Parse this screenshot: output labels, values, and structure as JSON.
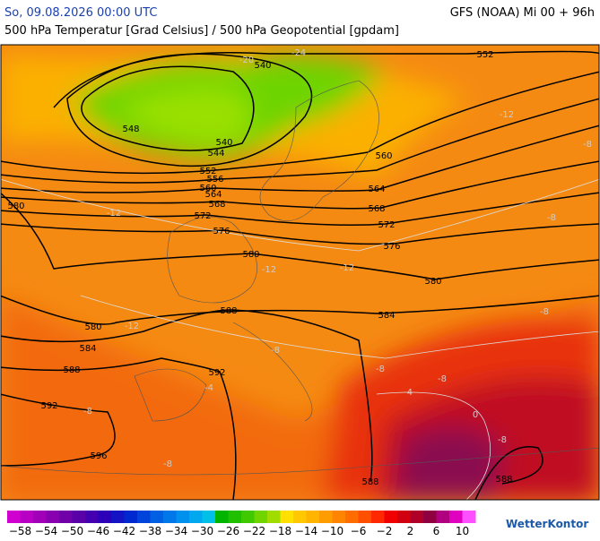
{
  "header": {
    "title": "So, 09.08.2026 00:00 UTC",
    "model": "GFS (NOAA) Mi 00 + 96h",
    "subtitle": "500 hPa Temperatur [Grad Celsius] / 500 hPa Geopotential [gpdam]"
  },
  "map": {
    "geopotential_labels": [
      "540",
      "552",
      "548",
      "540",
      "544",
      "552",
      "556",
      "560",
      "564",
      "568",
      "572",
      "576",
      "580",
      "580",
      "560",
      "564",
      "568",
      "572",
      "576",
      "580",
      "584",
      "588",
      "580",
      "584",
      "588",
      "592",
      "592",
      "596",
      "588",
      "588"
    ],
    "temperature_labels": [
      "-20",
      "-24",
      "-12",
      "-8",
      "-12",
      "-12",
      "-12",
      "-8",
      "-12",
      "-8",
      "-8",
      "-8",
      "-8",
      "-4",
      "0",
      "-8",
      "-8",
      "-4",
      "-8"
    ]
  },
  "colorbar": {
    "labels": [
      "−58",
      "−54",
      "−50",
      "−46",
      "−42",
      "−38",
      "−34",
      "−30",
      "−26",
      "−22",
      "−18",
      "−14",
      "−10",
      "−6",
      "−2",
      "2",
      "6",
      "10"
    ],
    "colors": [
      "#d000d0",
      "#b800c4",
      "#a000b8",
      "#8800b0",
      "#7000a8",
      "#5a00a8",
      "#4400b0",
      "#2c00b8",
      "#1414c4",
      "#0028d0",
      "#0044dc",
      "#0060e4",
      "#0078ea",
      "#0090ee",
      "#00a8f0",
      "#00c0e8",
      "#00b400",
      "#20c000",
      "#40c800",
      "#70d400",
      "#a0dc00",
      "#ffe000",
      "#ffc800",
      "#ffb400",
      "#ff9c00",
      "#ff8400",
      "#ff6c00",
      "#ff5000",
      "#ff2800",
      "#f00000",
      "#d00010",
      "#b00028",
      "#900040",
      "#b00080",
      "#e000c0",
      "#ff50ff"
    ]
  },
  "brand": "WetterKontor"
}
